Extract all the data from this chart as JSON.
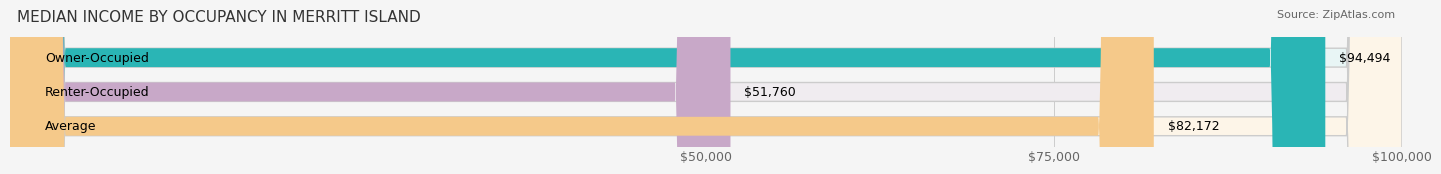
{
  "title": "MEDIAN INCOME BY OCCUPANCY IN MERRITT ISLAND",
  "source": "Source: ZipAtlas.com",
  "categories": [
    "Owner-Occupied",
    "Renter-Occupied",
    "Average"
  ],
  "values": [
    94494,
    51760,
    82172
  ],
  "labels": [
    "$94,494",
    "$51,760",
    "$82,172"
  ],
  "bar_colors": [
    "#2ab5b5",
    "#c8a8c8",
    "#f5c98a"
  ],
  "bar_bg_colors": [
    "#e8f5f5",
    "#f0ecf0",
    "#fdf5e8"
  ],
  "xmin": 0,
  "xmax": 100000,
  "xticks": [
    50000,
    75000,
    100000
  ],
  "xtick_labels": [
    "$50,000",
    "$75,000",
    "$100,000"
  ],
  "title_fontsize": 11,
  "source_fontsize": 8,
  "label_fontsize": 9,
  "bar_height": 0.55,
  "background_color": "#f5f5f5"
}
